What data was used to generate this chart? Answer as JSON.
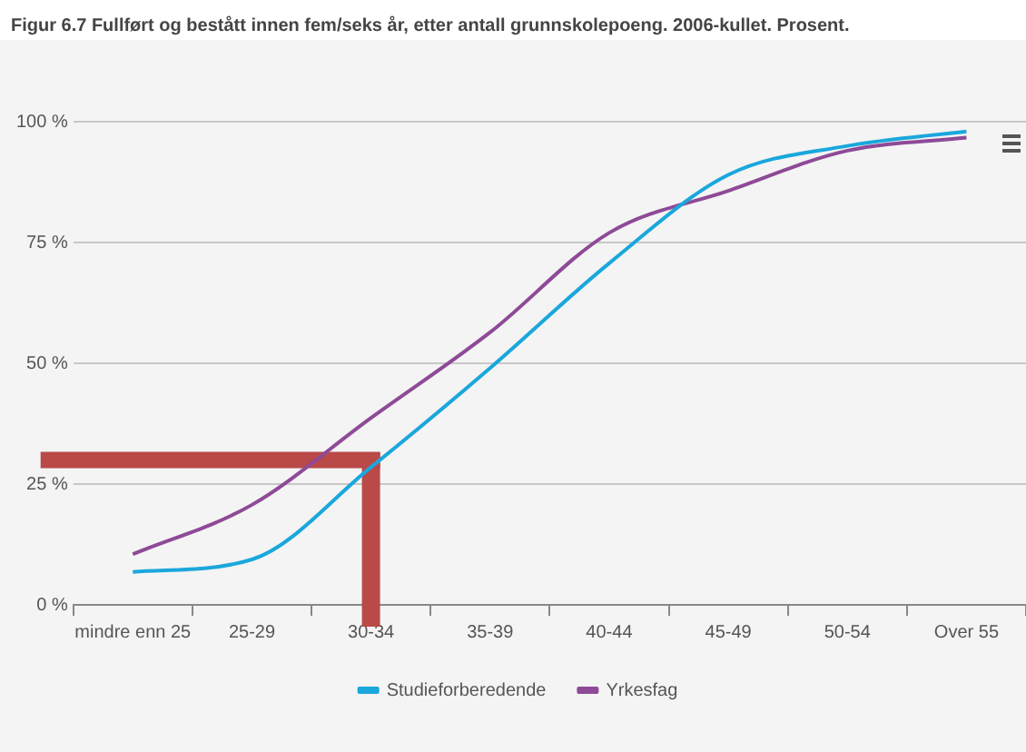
{
  "chart_data": {
    "type": "line",
    "title": "Figur 6.7 Fullført og bestått innen fem/seks år, etter antall grunnskolepoeng. 2006-kullet. Prosent.",
    "categories": [
      "mindre enn 25",
      "25-29",
      "30-34",
      "35-39",
      "40-44",
      "45-49",
      "50-54",
      "Over 55"
    ],
    "series": [
      {
        "name": "Studieforberedende",
        "color": "#1aa7dc",
        "values": [
          6.8,
          9.4,
          28.5,
          49,
          70.7,
          89,
          95,
          98
        ]
      },
      {
        "name": "Yrkesfag",
        "color": "#8e4a97",
        "values": [
          10.5,
          20.7,
          38.7,
          56.4,
          77,
          85.7,
          94,
          96.7
        ]
      }
    ],
    "ylim": [
      0,
      100
    ],
    "yticks": [
      {
        "value": 0,
        "label": "0 %"
      },
      {
        "value": 25,
        "label": "25 %"
      },
      {
        "value": 50,
        "label": "50 %"
      },
      {
        "value": 75,
        "label": "75 %"
      },
      {
        "value": 100,
        "label": "100 %"
      }
    ],
    "ref_lines": [
      {
        "axis": "y",
        "value": 30,
        "color": "#b94a48"
      },
      {
        "axis": "x",
        "value": "30-34",
        "color": "#b94a48"
      }
    ],
    "grid": "y",
    "legend": "bottom",
    "marker": "none",
    "line_style": "solid"
  }
}
